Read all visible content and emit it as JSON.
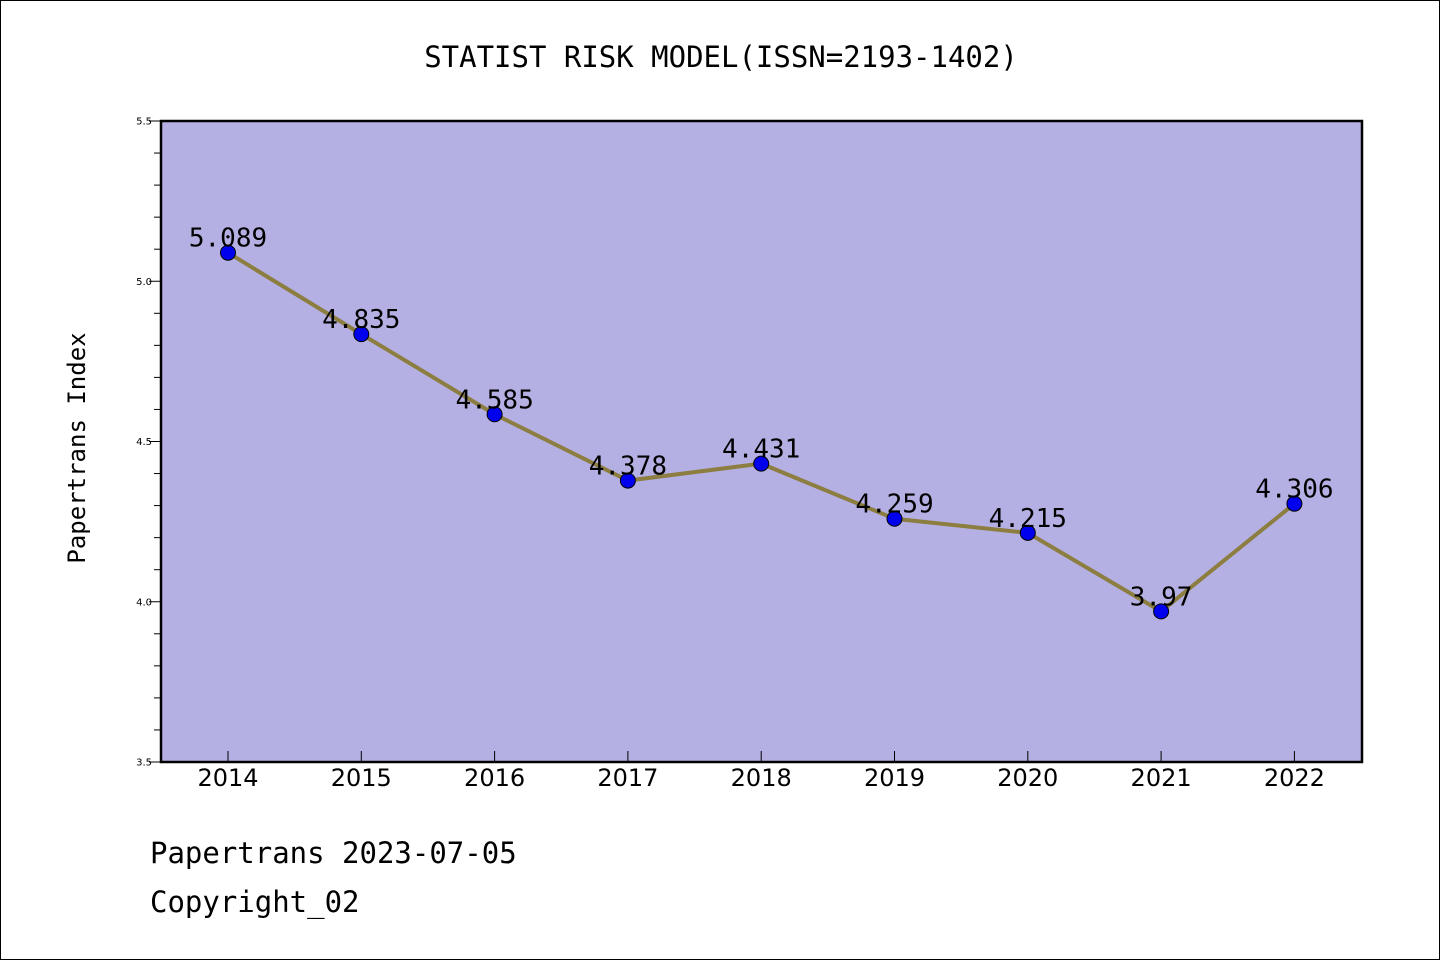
{
  "chart_data": {
    "type": "line",
    "title": "STATIST RISK MODEL(ISSN=2193-1402)",
    "xlabel": "",
    "ylabel": "Papertrans Index",
    "categories": [
      "2014",
      "2015",
      "2016",
      "2017",
      "2018",
      "2019",
      "2020",
      "2021",
      "2022"
    ],
    "series": [
      {
        "values": [
          5.089,
          4.835,
          4.585,
          4.378,
          4.431,
          4.259,
          4.215,
          3.97,
          4.306
        ],
        "labels": [
          "5.089",
          "4.835",
          "4.585",
          "4.378",
          "4.431",
          "4.259",
          "4.215",
          "3.97",
          "4.306"
        ]
      }
    ],
    "ylim": [
      3.5,
      5.5
    ],
    "yticks": [
      "3.5",
      "4.0",
      "4.5",
      "5.0",
      "5.5"
    ],
    "grid": false,
    "colors": {
      "plot_background": "#b5b0e3",
      "line": "#8c7d40",
      "marker": "#0000ee"
    }
  },
  "footer": {
    "date_line": "Papertrans 2023-07-05",
    "copyright": "Copyright_02"
  }
}
